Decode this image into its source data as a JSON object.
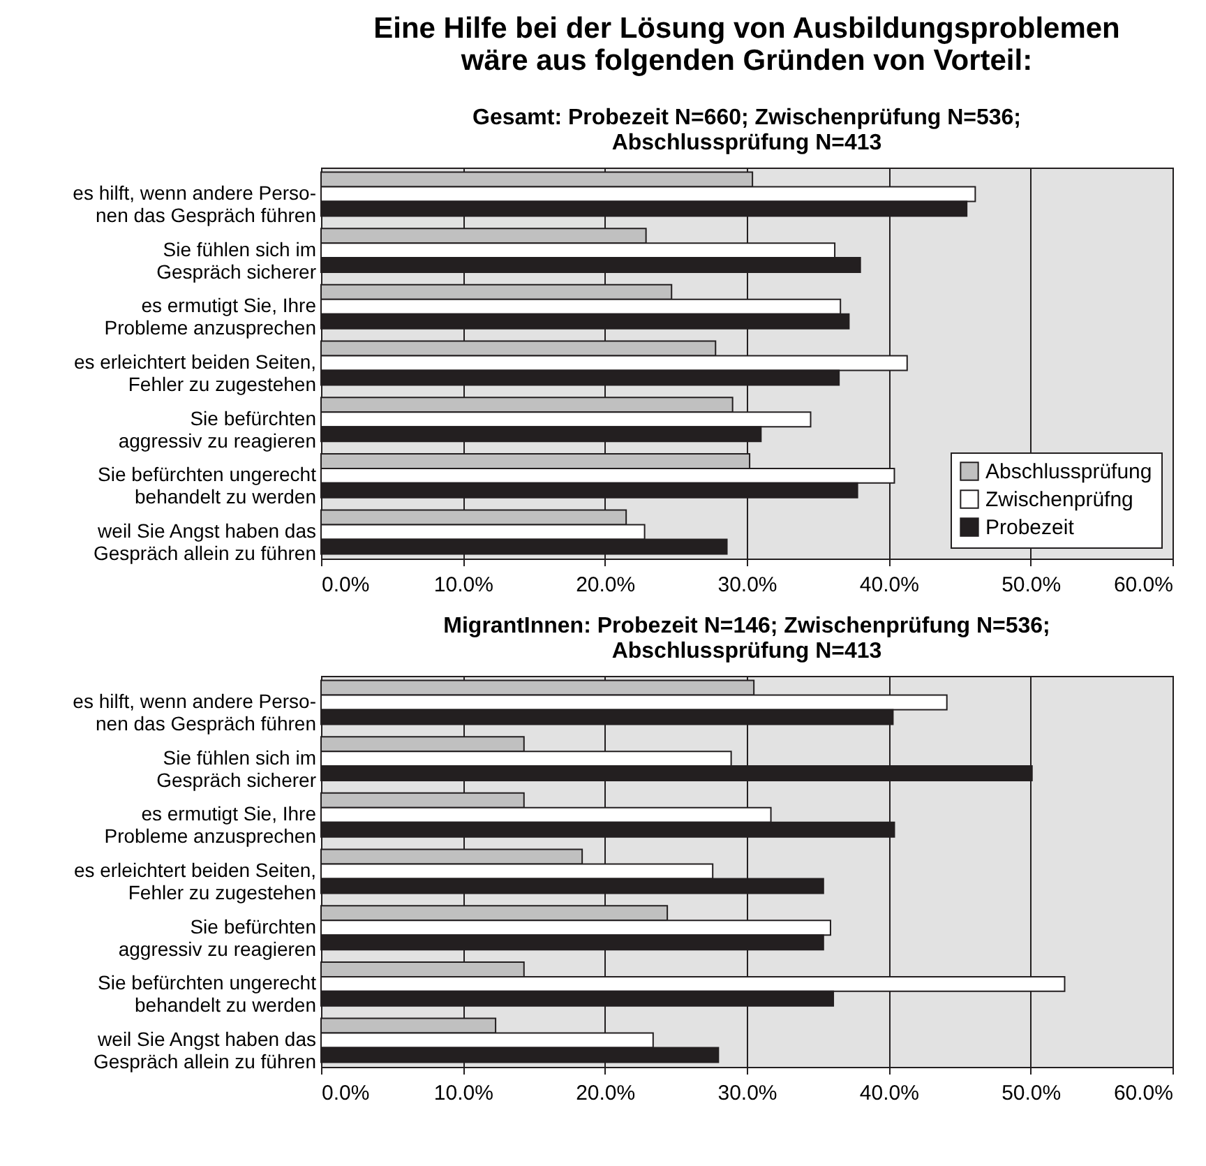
{
  "chart_data": [
    {
      "type": "bar",
      "orientation": "horizontal",
      "title": "Eine Hilfe bei der Lösung von Ausbildungsproblemen\nwäre aus folgenden Gründen von Vorteil:",
      "subtitle": "Gesamt: Probezeit N=660; Zwischenprüfung N=536;\nAbschlussprüfung N=413",
      "categories": [
        "es hilft, wenn andere Perso-\nnen das Gespräch führen",
        "Sie fühlen sich im\nGespräch sicherer",
        "es ermutigt Sie, Ihre\nProbleme anzusprechen",
        "es erleichtert beiden Seiten,\nFehler zu zugestehen",
        "Sie befürchten\naggressiv zu reagieren",
        "Sie befürchten ungerecht\nbehandelt zu werden",
        "weil Sie Angst haben das\nGespräch allein zu führen"
      ],
      "series": [
        {
          "name": "Abschlussprüfung",
          "color": "#c0c0c0",
          "values": [
            30.4,
            22.9,
            24.7,
            27.8,
            29.0,
            30.2,
            21.5
          ]
        },
        {
          "name": "Zwischenprüfng",
          "color": "#ffffff",
          "values": [
            46.1,
            36.2,
            36.6,
            41.3,
            34.5,
            40.4,
            22.8
          ]
        },
        {
          "name": "Probezeit",
          "color": "#231f20",
          "values": [
            45.5,
            38.0,
            37.2,
            36.5,
            31.0,
            37.8,
            28.6
          ]
        }
      ],
      "xlim": [
        0,
        60
      ],
      "xticks": [
        {
          "value": 0,
          "label": "0.0%"
        },
        {
          "value": 10,
          "label": "10.0%"
        },
        {
          "value": 20,
          "label": "20.0%"
        },
        {
          "value": 30,
          "label": "30.0%"
        },
        {
          "value": 40,
          "label": "40.0%"
        },
        {
          "value": 50,
          "label": "50.0%"
        },
        {
          "value": 60,
          "label": "60.0%"
        }
      ],
      "grid": "x",
      "legend": "bottom right"
    },
    {
      "type": "bar",
      "orientation": "horizontal",
      "title": "MigrantInnen: Probezeit N=146; Zwischenprüfung N=536;\nAbschlussprüfung N=413",
      "categories": [
        "es hilft, wenn andere Perso-\nnen das Gespräch führen",
        "Sie fühlen sich im\nGespräch sicherer",
        "es ermutigt Sie, Ihre\nProbleme anzusprechen",
        "es erleichtert beiden Seiten,\nFehler zu zugestehen",
        "Sie befürchten\naggressiv zu reagieren",
        "Sie befürchten ungerecht\nbehandelt zu werden",
        "weil Sie Angst haben das\nGespräch allein zu führen"
      ],
      "series": [
        {
          "color": "#c0c0c0",
          "values": [
            30.5,
            14.3,
            14.3,
            18.4,
            24.4,
            14.3,
            12.3
          ]
        },
        {
          "color": "#ffffff",
          "values": [
            44.1,
            28.9,
            31.7,
            27.6,
            35.9,
            52.4,
            23.4
          ]
        },
        {
          "color": "#231f20",
          "values": [
            40.3,
            50.1,
            40.4,
            35.4,
            35.4,
            36.1,
            28.0
          ]
        }
      ],
      "xlim": [
        0,
        60
      ],
      "xticks": [
        {
          "value": 0,
          "label": "0.0%"
        },
        {
          "value": 10,
          "label": "10.0%"
        },
        {
          "value": 20,
          "label": "20.0%"
        },
        {
          "value": 30,
          "label": "30.0%"
        },
        {
          "value": 40,
          "label": "40.0%"
        },
        {
          "value": 50,
          "label": "50.0%"
        },
        {
          "value": 60,
          "label": "60.0%"
        }
      ],
      "grid": "x"
    }
  ]
}
